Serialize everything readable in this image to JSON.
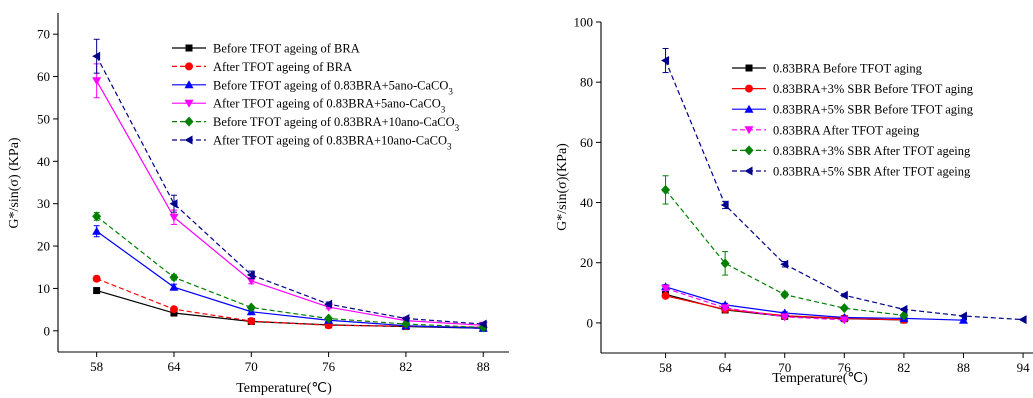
{
  "chart_data": [
    {
      "type": "line",
      "title": "",
      "xlabel": "Temperature(℃)",
      "ylabel": "G*/sin(σ)  (KPa)",
      "x": [
        58,
        64,
        70,
        76,
        82,
        88
      ],
      "xticks": [
        "58",
        "64",
        "70",
        "76",
        "82",
        "88"
      ],
      "yticks": [
        "0",
        "10",
        "20",
        "30",
        "40",
        "50",
        "60",
        "70"
      ],
      "xlim": [
        55,
        90
      ],
      "ylim": [
        -5,
        75
      ],
      "legend_position": "top-right",
      "series": [
        {
          "name": "Before TFOT ageing of BRA",
          "name_parts": [
            [
              "Before TFOT ageing of BRA",
              ""
            ]
          ],
          "values": [
            9.5,
            4.2,
            2.2,
            1.4,
            1.0,
            0.6
          ],
          "errors": [
            0.5,
            0.4,
            0.3,
            0.3,
            0.2,
            0.2
          ],
          "color": "#000000",
          "marker": "square",
          "dash": false
        },
        {
          "name": "After TFOT ageing of BRA",
          "name_parts": [
            [
              "After TFOT ageing of BRA",
              ""
            ]
          ],
          "values": [
            12.3,
            5.1,
            2.3,
            1.3,
            1.1,
            0.8
          ],
          "errors": [
            0.6,
            0.5,
            0.3,
            0.3,
            0.2,
            0.2
          ],
          "color": "#ff0000",
          "marker": "circle",
          "dash": true
        },
        {
          "name": "Before TFOT ageing of 0.83BRA+5ano-CaCO3",
          "name_parts": [
            [
              "Before TFOT ageing of 0.83BRA+5ano-CaCO",
              "3"
            ]
          ],
          "values": [
            23.5,
            10.3,
            4.5,
            2.5,
            1.2,
            0.6
          ],
          "errors": [
            1.3,
            0.7,
            0.4,
            0.3,
            0.2,
            0.2
          ],
          "color": "#0000ff",
          "marker": "triangle-up",
          "dash": false
        },
        {
          "name": "After TFOT ageing of 0.83BRA+5ano-CaCO3",
          "name_parts": [
            [
              "After TFOT ageing of 0.83BRA+5ano-CaCO",
              "3"
            ]
          ],
          "values": [
            59.0,
            26.8,
            11.8,
            5.6,
            2.4,
            1.3
          ],
          "errors": [
            4.0,
            1.7,
            0.7,
            0.4,
            0.3,
            0.2
          ],
          "color": "#ff00ff",
          "marker": "triangle-down",
          "dash": false
        },
        {
          "name": "Before TFOT ageing of 0.83BRA+10ano-CaCO3",
          "name_parts": [
            [
              "Before TFOT ageing of 0.83BRA+10ano-CaCO",
              "3"
            ]
          ],
          "values": [
            27.0,
            12.6,
            5.5,
            2.9,
            1.6,
            0.8
          ],
          "errors": [
            0.9,
            0.6,
            0.4,
            0.3,
            0.2,
            0.2
          ],
          "color": "#008000",
          "marker": "diamond",
          "dash": true
        },
        {
          "name": "After TFOT ageing of 0.83BRA+10ano-CaCO3",
          "name_parts": [
            [
              "After TFOT ageing of 0.83BRA+10ano-CaCO",
              "3"
            ]
          ],
          "values": [
            64.8,
            30.0,
            13.2,
            6.3,
            2.9,
            1.6
          ],
          "errors": [
            4.0,
            2.0,
            0.9,
            0.5,
            0.3,
            0.2
          ],
          "color": "#00008b",
          "marker": "triangle-left",
          "dash": true
        }
      ]
    },
    {
      "type": "line",
      "title": "",
      "xlabel": "Temperature(℃)",
      "ylabel": "G*/sin(σ)(KPa)",
      "x": [
        58,
        64,
        70,
        76,
        82,
        88,
        94
      ],
      "xticks": [
        "58",
        "64",
        "70",
        "76",
        "82",
        "88",
        "94"
      ],
      "yticks": [
        "0",
        "20",
        "40",
        "60",
        "80",
        "100"
      ],
      "xlim": [
        51.5,
        95
      ],
      "ylim": [
        -10,
        100
      ],
      "legend_position": "top-right",
      "series": [
        {
          "name": "0.83BRA Before TFOT aging",
          "name_parts": [
            [
              "0.83BRA Before TFOT aging",
              ""
            ]
          ],
          "x": [
            58,
            64,
            70,
            76,
            82
          ],
          "values": [
            9.5,
            4.3,
            2.2,
            1.4,
            1.0
          ],
          "errors": [
            0.6,
            0.4,
            0.3,
            0.3,
            0.2
          ],
          "color": "#000000",
          "marker": "square",
          "dash": false
        },
        {
          "name": "0.83BRA+3% SBR Before TFOT aging",
          "name_parts": [
            [
              "0.83BRA+3% SBR Before TFOT aging",
              ""
            ]
          ],
          "x": [
            58,
            64,
            70,
            76,
            82
          ],
          "values": [
            9.0,
            4.5,
            2.4,
            1.5,
            1.0
          ],
          "errors": [
            0.5,
            0.4,
            0.3,
            0.3,
            0.2
          ],
          "color": "#ff0000",
          "marker": "circle",
          "dash": false
        },
        {
          "name": "0.83BRA+5% SBR Before TFOT aging",
          "name_parts": [
            [
              "0.83BRA+5% SBR Before TFOT aging",
              ""
            ]
          ],
          "x": [
            58,
            64,
            70,
            76,
            82,
            88
          ],
          "values": [
            12.0,
            6.0,
            3.3,
            1.8,
            1.5,
            0.9
          ],
          "errors": [
            0.7,
            0.5,
            0.4,
            0.3,
            0.2,
            0.2
          ],
          "color": "#0000ff",
          "marker": "triangle-up",
          "dash": false
        },
        {
          "name": "0.83BRA After TFOT ageing",
          "name_parts": [
            [
              "0.83BRA After TFOT ageing",
              ""
            ]
          ],
          "x": [
            58,
            64,
            70,
            76
          ],
          "values": [
            11.5,
            5.0,
            2.0,
            1.0
          ],
          "errors": [
            0.8,
            0.5,
            0.3,
            0.3
          ],
          "color": "#ff00ff",
          "marker": "triangle-down",
          "dash": true
        },
        {
          "name": "0.83BRA+3% SBR After TFOT ageing",
          "name_parts": [
            [
              "0.83BRA+3% SBR After TFOT ageing",
              ""
            ]
          ],
          "x": [
            58,
            64,
            70,
            76,
            82
          ],
          "values": [
            44.2,
            19.8,
            9.4,
            4.9,
            2.5
          ],
          "errors": [
            4.7,
            3.9,
            0.8,
            0.5,
            0.3
          ],
          "color": "#008000",
          "marker": "diamond",
          "dash": true
        },
        {
          "name": "0.83BRA+5% SBR After TFOT ageing",
          "name_parts": [
            [
              "0.83BRA+5% SBR After TFOT ageing",
              ""
            ]
          ],
          "x": [
            58,
            64,
            70,
            76,
            82,
            88,
            94
          ],
          "values": [
            87.2,
            39.2,
            19.5,
            9.2,
            4.5,
            2.3,
            1.1
          ],
          "errors": [
            4.0,
            1.2,
            0.9,
            0.5,
            0.3,
            0.2,
            0.2
          ],
          "color": "#00008b",
          "marker": "triangle-left",
          "dash": true
        }
      ]
    }
  ]
}
